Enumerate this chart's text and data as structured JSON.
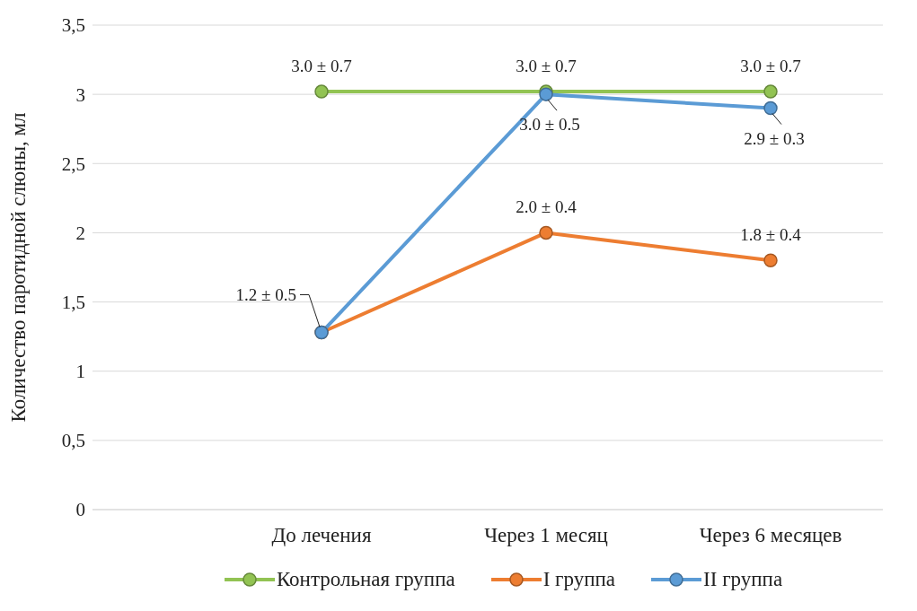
{
  "chart_data": {
    "type": "line",
    "ylabel": "Количество паротидной слюны, мл",
    "categories": [
      "До лечения",
      "Через 1 месяц",
      "Через 6 месяцев"
    ],
    "series": [
      {
        "name": "Контрольная группа",
        "color": "#92c353",
        "values": [
          3.02,
          3.02,
          3.02
        ]
      },
      {
        "name": "I группа",
        "color": "#ed7d31",
        "values": [
          1.28,
          2.0,
          1.8
        ]
      },
      {
        "name": "II группа",
        "color": "#5b9bd5",
        "values": [
          1.28,
          3.0,
          2.9
        ]
      }
    ],
    "ylim": [
      0,
      3.5
    ],
    "yticks": [
      0,
      {
        "value": 0.5,
        "label": "0,5"
      },
      1,
      {
        "value": 1.5,
        "label": "1,5"
      },
      2,
      {
        "value": 2.5,
        "label": "2,5"
      },
      3,
      {
        "value": 3.5,
        "label": "3,5"
      }
    ],
    "grid": "y",
    "legend": "bottom",
    "marker": "circle",
    "line_style": "solid",
    "annotations": [
      {
        "text": "3.0 ± 0.7",
        "x": "До лечения",
        "y": 3.02
      },
      {
        "text": "3.0 ± 0.7",
        "x": "Через 1 месяц",
        "y": 3.02
      },
      {
        "text": "3.0 ± 0.7",
        "x": "Через 6 месяцев",
        "y": 3.02
      },
      {
        "text": "1.2 ± 0.5",
        "x": "До лечения",
        "y": 1.28
      },
      {
        "text": "3.0 ± 0.5",
        "x": "Через 1 месяц",
        "y": 3.0
      },
      {
        "text": "2.9 ± 0.3",
        "x": "Через 6 месяцев",
        "y": 2.9
      },
      {
        "text": "2.0 ± 0.4",
        "x": "Через 1 месяц",
        "y": 2.0
      },
      {
        "text": "1.8 ± 0.4",
        "x": "Через 6 месяцев",
        "y": 1.8
      }
    ]
  }
}
